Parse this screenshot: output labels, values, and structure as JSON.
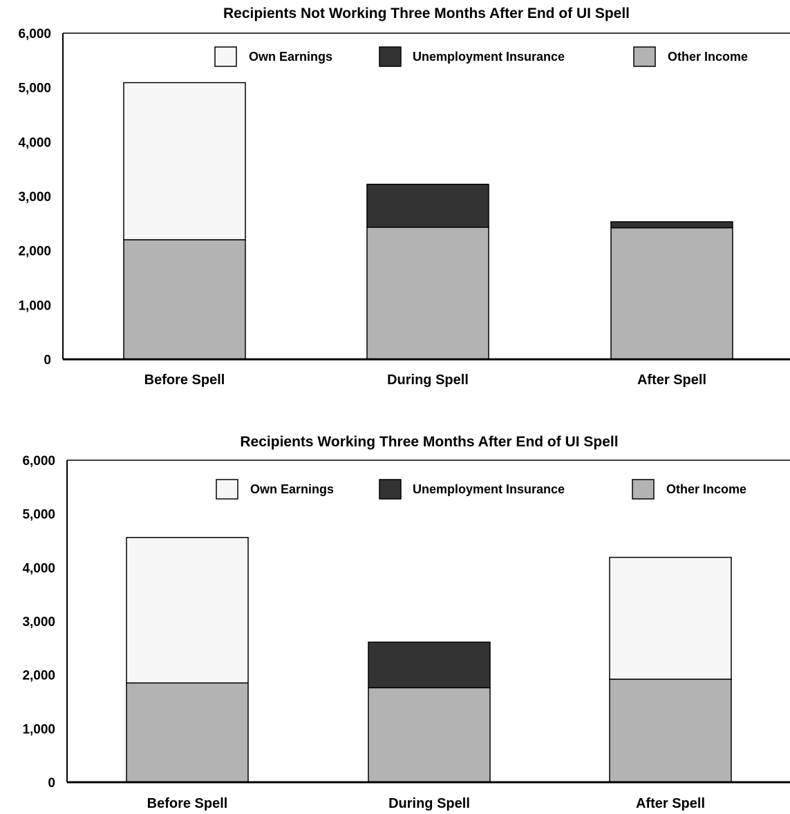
{
  "colors": {
    "own_earnings": "#f7f7f7",
    "unemployment_insurance": "#333333",
    "other_income": "#b3b3b3",
    "stroke": "#000000"
  },
  "chart_data": [
    {
      "type": "bar",
      "stacked": true,
      "title": "Recipients Not Working Three Months After End of UI Spell",
      "xlabel": "",
      "ylabel": "",
      "ylim": [
        0,
        6000
      ],
      "yticks": [
        0,
        1000,
        2000,
        3000,
        4000,
        5000,
        6000
      ],
      "ytick_labels": [
        "0",
        "1,000",
        "2,000",
        "3,000",
        "4,000",
        "5,000",
        "6,000"
      ],
      "grid": false,
      "legend_position": "top-right",
      "categories": [
        "Before Spell",
        "During Spell",
        "After Spell"
      ],
      "series": [
        {
          "name": "Other Income",
          "values": [
            2200,
            2430,
            2420
          ]
        },
        {
          "name": "Unemployment Insurance",
          "values": [
            0,
            790,
            110
          ]
        },
        {
          "name": "Own Earnings",
          "values": [
            2890,
            0,
            0
          ]
        }
      ],
      "legend_order": [
        "Own Earnings",
        "Unemployment Insurance",
        "Other Income"
      ]
    },
    {
      "type": "bar",
      "stacked": true,
      "title": "Recipients Working Three Months After End of UI Spell",
      "xlabel": "",
      "ylabel": "",
      "ylim": [
        0,
        6000
      ],
      "yticks": [
        0,
        1000,
        2000,
        3000,
        4000,
        5000,
        6000
      ],
      "ytick_labels": [
        "0",
        "1,000",
        "2,000",
        "3,000",
        "4,000",
        "5,000",
        "6,000"
      ],
      "grid": false,
      "legend_position": "top-right",
      "categories": [
        "Before Spell",
        "During Spell",
        "After Spell"
      ],
      "series": [
        {
          "name": "Other Income",
          "values": [
            1850,
            1760,
            1920
          ]
        },
        {
          "name": "Unemployment Insurance",
          "values": [
            0,
            850,
            0
          ]
        },
        {
          "name": "Own Earnings",
          "values": [
            2710,
            0,
            2270
          ]
        }
      ],
      "legend_order": [
        "Own Earnings",
        "Unemployment Insurance",
        "Other Income"
      ]
    }
  ]
}
